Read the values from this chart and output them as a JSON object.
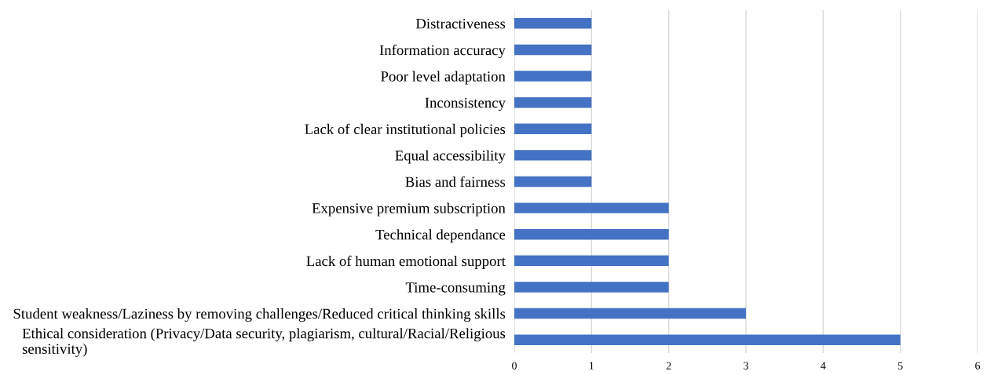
{
  "chart_data": {
    "type": "bar",
    "orientation": "horizontal",
    "color": "#4472c4",
    "categories": [
      "Distractiveness",
      "Information accuracy",
      "Poor level adaptation",
      "Inconsistency",
      "Lack of clear institutional policies",
      "Equal accessibility",
      "Bias and fairness",
      "Expensive premium subscription",
      "Technical dependance",
      "Lack of human emotional support",
      "Time-consuming",
      "Student weakness/Laziness by removing challenges/Reduced critical thinking skills",
      "Ethical consideration (Privacy/Data security, plagiarism, cultural/Racial/Religious\nsensitivity)"
    ],
    "values": [
      1,
      1,
      1,
      1,
      1,
      1,
      1,
      2,
      2,
      2,
      2,
      3,
      5
    ],
    "xlim": [
      0,
      6
    ],
    "xticks": [
      0,
      1,
      2,
      3,
      4,
      5,
      6
    ],
    "grid": "x",
    "legend": false
  }
}
